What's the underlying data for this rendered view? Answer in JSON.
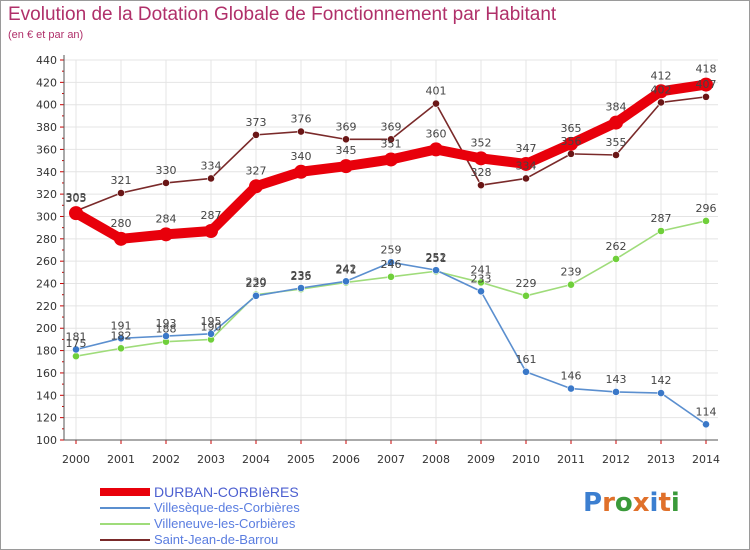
{
  "header": {
    "title": "Evolution de la Dotation Globale de Fonctionnement par Habitant",
    "subtitle": "(en € et par an)"
  },
  "logo": {
    "text": "Proxiti",
    "letters": [
      "P",
      "r",
      "o",
      "x",
      "i",
      "t",
      "i"
    ]
  },
  "colors": {
    "title": "#b0306a",
    "axis": "#555555",
    "grid": "#e4e4e4",
    "tick_red": "#cc0000",
    "label": "#444444",
    "logo": [
      "#3c7fd0",
      "#e0702a",
      "#3a9a3a",
      "#e0702a",
      "#3c7fd0",
      "#e0702a",
      "#3a9a3a"
    ]
  },
  "chart_data": {
    "type": "line",
    "title": "Evolution de la Dotation Globale de Fonctionnement par Habitant",
    "subtitle": "(en € et par an)",
    "xlabel": "",
    "ylabel": "",
    "grid": true,
    "ylim": [
      100,
      440
    ],
    "yticks": [
      100,
      120,
      140,
      160,
      180,
      200,
      220,
      240,
      260,
      280,
      300,
      320,
      340,
      360,
      380,
      400,
      420,
      440
    ],
    "categories": [
      "2000",
      "2001",
      "2002",
      "2003",
      "2004",
      "2005",
      "2006",
      "2007",
      "2008",
      "2009",
      "2010",
      "2011",
      "2012",
      "2013",
      "2014"
    ],
    "legend_position": "bottom-left",
    "series": [
      {
        "name": "DURBAN-CORBIèRES",
        "values": [
          303,
          280,
          284,
          287,
          327,
          340,
          345,
          351,
          360,
          352,
          347,
          365,
          384,
          412,
          418
        ],
        "labels": [
          "303",
          "280",
          "284",
          "287",
          "327",
          "340",
          "345",
          "351",
          "360",
          "352",
          "347",
          "365",
          "384",
          "412",
          "418"
        ],
        "color": "#e8000b",
        "marker_color": "#e8000b",
        "bold": true
      },
      {
        "name": "Villesèque-des-Corbières",
        "values": [
          181,
          191,
          193,
          195,
          229,
          236,
          242,
          259,
          252,
          233,
          161,
          146,
          143,
          142,
          114
        ],
        "labels": [
          "181",
          "191",
          "193",
          "195",
          "229",
          "236",
          "242",
          "259",
          "252",
          "233",
          "161",
          "146",
          "143",
          "142",
          "114"
        ],
        "color": "#5b8fcf",
        "marker_color": "#3a78c8",
        "bold": false
      },
      {
        "name": "Villeneuve-les-Corbières",
        "values": [
          175,
          182,
          188,
          190,
          230,
          235,
          241,
          246,
          251,
          241,
          229,
          239,
          262,
          287,
          296
        ],
        "labels": [
          "175",
          "182",
          "188",
          "190",
          "230",
          "235",
          "241",
          "246",
          "251",
          "241",
          "229",
          "239",
          "262",
          "287",
          "296"
        ],
        "color": "#9fdc7a",
        "marker_color": "#6fcf3a",
        "bold": false
      },
      {
        "name": "Saint-Jean-de-Barrou",
        "values": [
          305,
          321,
          330,
          334,
          373,
          376,
          369,
          369,
          401,
          328,
          334,
          356,
          355,
          402,
          407
        ],
        "labels": [
          "305",
          "321",
          "330",
          "334",
          "373",
          "376",
          "369",
          "369",
          "401",
          "328",
          "334",
          "356",
          "355",
          "402",
          "407"
        ],
        "color": "#7a2a2a",
        "marker_color": "#6a1616",
        "bold": false
      }
    ]
  }
}
